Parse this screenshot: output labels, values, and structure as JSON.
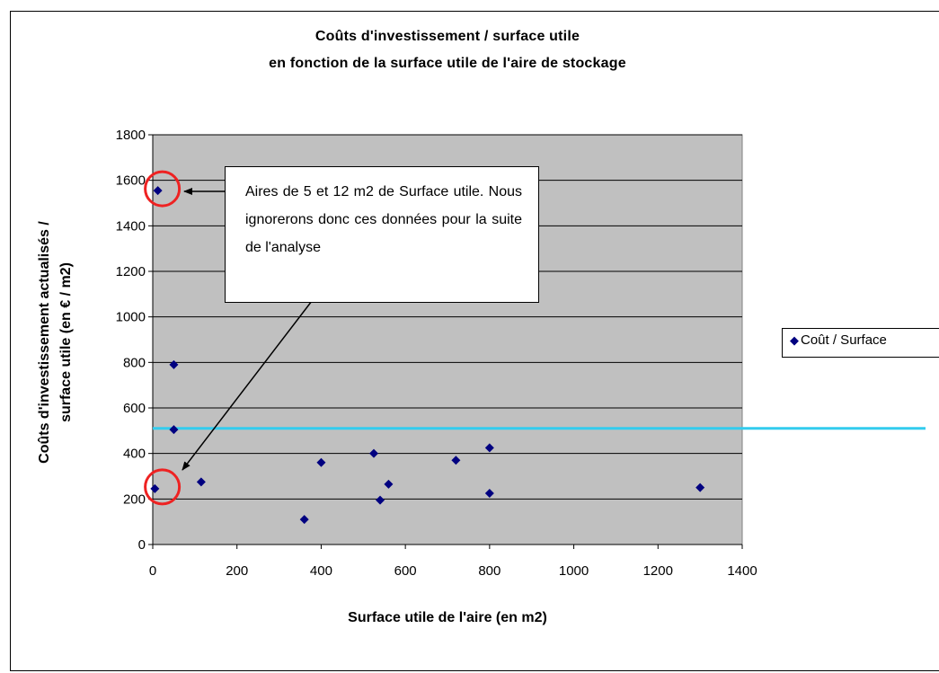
{
  "chart_data": {
    "type": "scatter",
    "title": "Coûts d'investissement / surface utile",
    "subtitle": "en fonction de la surface utile de l'aire de stockage",
    "xlabel": "Surface utile de l'aire (en m2)",
    "ylabel_line1": "Coûts d'investissement actualisés /",
    "ylabel_line2": "surface utile (en € / m2)",
    "xlim": [
      0,
      1400
    ],
    "ylim": [
      0,
      1800
    ],
    "x_ticks": [
      "0",
      "200",
      "400",
      "600",
      "800",
      "1000",
      "1200",
      "1400"
    ],
    "y_ticks": [
      "0",
      "200",
      "400",
      "600",
      "800",
      "1000",
      "1200",
      "1400",
      "1600",
      "1800"
    ],
    "grid": "horizontal",
    "plot_background": "#c0c0c0",
    "series": [
      {
        "name": "Coût / Surface",
        "color": "#000080",
        "marker": "diamond",
        "points": [
          {
            "x": 5,
            "y": 245
          },
          {
            "x": 12,
            "y": 1555
          },
          {
            "x": 50,
            "y": 790
          },
          {
            "x": 50,
            "y": 505
          },
          {
            "x": 115,
            "y": 275
          },
          {
            "x": 360,
            "y": 110
          },
          {
            "x": 400,
            "y": 360
          },
          {
            "x": 525,
            "y": 400
          },
          {
            "x": 540,
            "y": 195
          },
          {
            "x": 560,
            "y": 265
          },
          {
            "x": 720,
            "y": 370
          },
          {
            "x": 800,
            "y": 425
          },
          {
            "x": 800,
            "y": 225
          },
          {
            "x": 1300,
            "y": 250
          }
        ]
      }
    ],
    "reference_line": {
      "y": 510,
      "color": "#33ccee"
    },
    "highlight_circles": [
      {
        "x": 12,
        "y": 1555,
        "color": "#ee2222"
      },
      {
        "x": 12,
        "y": 245,
        "color": "#ee2222"
      }
    ],
    "annotation": {
      "text": "Aires de 5 et 12 m2 de Surface utile. Nous ignorerons donc ces données pour la suite de l'analyse"
    },
    "legend": {
      "label": "Coût / Surface",
      "placement": "right"
    }
  }
}
